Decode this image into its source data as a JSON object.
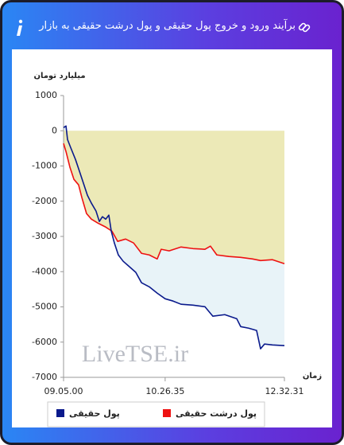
{
  "header": {
    "title": "برآیند ورود و خروج پول حقیقی و پول درشت حقیقی به بازار"
  },
  "chart_data": {
    "type": "line",
    "y_label": "میلیارد تومان",
    "x_label": "زمان",
    "watermark": "LiveTSE.ir",
    "xlim": [
      0,
      100
    ],
    "xticks": [
      {
        "value": 0,
        "label": "09.05.00"
      },
      {
        "value": 46,
        "label": "10.26.35"
      },
      {
        "value": 100,
        "label": "12.32.31"
      }
    ],
    "ylim": [
      -7000,
      1000
    ],
    "yticks": [
      -7000,
      -6000,
      -5000,
      -4000,
      -3000,
      -2000,
      -1000,
      0,
      1000
    ],
    "grid": false,
    "fill_above_first": "#ece9b7",
    "fill_between": "#e8f3f8",
    "series": [
      {
        "name": "پول حقیقی",
        "color": "#0a1a8c",
        "x": [
          0,
          1.1,
          1.8,
          3.2,
          5.4,
          7.2,
          9.0,
          10.8,
          12.6,
          14.7,
          16.2,
          17.6,
          19.1,
          20.5,
          21.6,
          23.0,
          24.8,
          27.0,
          29.9,
          32.7,
          35.3,
          38.8,
          42.4,
          46.0,
          49.6,
          53.2,
          58.6,
          64.0,
          67.6,
          73.0,
          78.4,
          80.2,
          83.8,
          87.4,
          89.2,
          91.0,
          94.6,
          100
        ],
        "values": [
          90,
          135,
          -250,
          -475,
          -815,
          -1150,
          -1490,
          -1830,
          -2055,
          -2280,
          -2575,
          -2440,
          -2510,
          -2395,
          -2850,
          -3185,
          -3525,
          -3705,
          -3865,
          -4020,
          -4315,
          -4430,
          -4610,
          -4770,
          -4835,
          -4925,
          -4950,
          -4995,
          -5265,
          -5220,
          -5335,
          -5560,
          -5605,
          -5670,
          -6190,
          -6055,
          -6080,
          -6100
        ]
      },
      {
        "name": "پول درشت حقیقی",
        "color": "#ee1111",
        "x": [
          0,
          1.1,
          2.9,
          4.7,
          6.8,
          8.3,
          10.4,
          12.6,
          15.5,
          19.1,
          21.9,
          24.5,
          28.1,
          31.7,
          35.3,
          38.8,
          42.4,
          44.2,
          47.8,
          53.2,
          58.6,
          64.0,
          66.5,
          69.4,
          74.8,
          80.2,
          85.6,
          89.2,
          94.6,
          100
        ],
        "values": [
          -360,
          -590,
          -1040,
          -1380,
          -1535,
          -1900,
          -2350,
          -2510,
          -2620,
          -2735,
          -2850,
          -3140,
          -3075,
          -3185,
          -3480,
          -3525,
          -3640,
          -3365,
          -3410,
          -3300,
          -3345,
          -3365,
          -3275,
          -3525,
          -3570,
          -3595,
          -3640,
          -3685,
          -3660,
          -3775
        ]
      }
    ]
  }
}
